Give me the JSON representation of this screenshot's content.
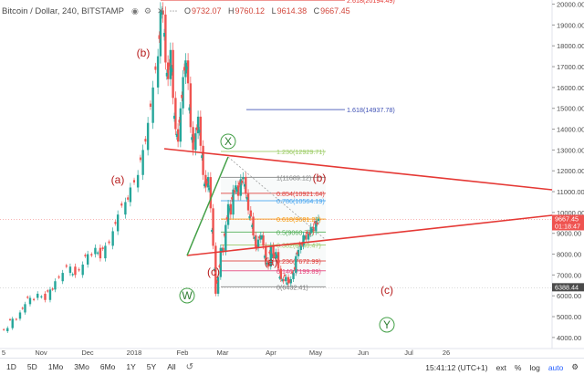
{
  "header": {
    "title": "Bitcoin / Dollar, 240, BITSTAMP",
    "ohlc": [
      {
        "k": "O",
        "v": "9732.07"
      },
      {
        "k": "H",
        "v": "9760.12"
      },
      {
        "k": "L",
        "v": "9614.38"
      },
      {
        "k": "C",
        "v": "9667.45"
      }
    ]
  },
  "chart_data": {
    "type": "line",
    "yaxis": {
      "ticks": [
        "20000.00",
        "19000.00",
        "18000.00",
        "17000.00",
        "16000.00",
        "15000.00",
        "14000.00",
        "13000.00",
        "12000.00",
        "11000.00",
        "10000.00",
        "9000.00",
        "8000.00",
        "7000.00",
        "6000.00",
        "5000.00",
        "4000.00"
      ],
      "ylim": [
        3600,
        20200
      ]
    },
    "xaxis": {
      "ticks": [
        "5",
        "Nov",
        "Dec",
        "2018",
        "Feb",
        "Mar",
        "Apr",
        "May",
        "Jun",
        "Jul",
        "26"
      ]
    },
    "price_labels": [
      {
        "value": 9667.45,
        "text": "9667.45",
        "subtext": "01:18:47",
        "color": "#ef5350"
      },
      {
        "value": 6388.44,
        "text": "6388.44",
        "subtext": "",
        "color": "#4a4a4a"
      }
    ],
    "series": [
      {
        "values": [
          [
            0,
            4300
          ],
          [
            3,
            4450
          ],
          [
            5,
            4900
          ],
          [
            8,
            5200
          ],
          [
            10,
            5600
          ],
          [
            12,
            5900
          ],
          [
            15,
            6100
          ],
          [
            18,
            5800
          ],
          [
            20,
            6300
          ],
          [
            22,
            6700
          ],
          [
            25,
            7100
          ],
          [
            28,
            7400
          ],
          [
            30,
            7000
          ],
          [
            33,
            7500
          ],
          [
            35,
            8000
          ],
          [
            38,
            8300
          ],
          [
            40,
            7800
          ],
          [
            42,
            8400
          ],
          [
            45,
            9100
          ],
          [
            47,
            9900
          ],
          [
            50,
            10500
          ],
          [
            52,
            11200
          ],
          [
            55,
            11800
          ],
          [
            57,
            13000
          ],
          [
            59,
            14300
          ],
          [
            61,
            16000
          ],
          [
            63,
            17500
          ],
          [
            64,
            19700
          ],
          [
            65,
            19500
          ],
          [
            66,
            17200
          ],
          [
            67,
            16400
          ],
          [
            68,
            17800
          ],
          [
            69,
            15500
          ],
          [
            70,
            14000
          ],
          [
            71,
            13400
          ],
          [
            72,
            15000
          ],
          [
            73,
            16500
          ],
          [
            74,
            17300
          ],
          [
            75,
            16200
          ],
          [
            76,
            14100
          ],
          [
            77,
            13000
          ],
          [
            78,
            13800
          ],
          [
            79,
            14600
          ],
          [
            80,
            13200
          ],
          [
            81,
            11800
          ],
          [
            82,
            11200
          ],
          [
            83,
            11700
          ],
          [
            84,
            10200
          ],
          [
            85,
            8400
          ],
          [
            86,
            6100
          ],
          [
            87,
            6900
          ],
          [
            88,
            8300
          ],
          [
            89,
            8100
          ],
          [
            90,
            9400
          ],
          [
            91,
            10400
          ],
          [
            92,
            9900
          ],
          [
            93,
            11100
          ],
          [
            94,
            11300
          ],
          [
            95,
            10800
          ],
          [
            96,
            11600
          ],
          [
            97,
            11700
          ],
          [
            98,
            10900
          ],
          [
            99,
            10100
          ],
          [
            100,
            9800
          ],
          [
            101,
            8900
          ],
          [
            102,
            8300
          ],
          [
            103,
            8700
          ],
          [
            104,
            8900
          ],
          [
            105,
            8400
          ],
          [
            106,
            7700
          ],
          [
            107,
            7400
          ],
          [
            108,
            8400
          ],
          [
            109,
            7800
          ],
          [
            110,
            8100
          ],
          [
            111,
            7300
          ],
          [
            112,
            6800
          ],
          [
            113,
            6700
          ],
          [
            114,
            6900
          ],
          [
            115,
            6600
          ],
          [
            116,
            6800
          ],
          [
            117,
            7100
          ],
          [
            118,
            7900
          ],
          [
            119,
            8200
          ],
          [
            120,
            8400
          ],
          [
            121,
            8900
          ],
          [
            122,
            8700
          ],
          [
            123,
            9000
          ],
          [
            124,
            9300
          ],
          [
            125,
            9100
          ],
          [
            126,
            9600
          ],
          [
            127,
            9700
          ]
        ]
      }
    ],
    "fib_levels": [
      {
        "ratio": "2.618",
        "value": 20194.49,
        "label": "2.618(20194.49)",
        "color": "#e53935"
      },
      {
        "ratio": "1.618",
        "value": 14937.78,
        "label": "1.618(14937.78)",
        "color": "#3f51b5"
      },
      {
        "ratio": "1.236",
        "value": 12929.71,
        "label": "1.236(12929.71)",
        "color": "#9ccc65"
      },
      {
        "ratio": "1",
        "value": 11689.12,
        "label": "1(11689.12)",
        "color": "#808080"
      },
      {
        "ratio": "0.854",
        "value": 10921.64,
        "label": "0.854(10921.64)",
        "color": "#e53935"
      },
      {
        "ratio": "0.786",
        "value": 10564.19,
        "label": "0.786(10564.19)",
        "color": "#42a5f5"
      },
      {
        "ratio": "0.618",
        "value": 9681.27,
        "label": "0.618(9681.27)",
        "color": "#ff9800"
      },
      {
        "ratio": "0.5",
        "value": 9060.77,
        "label": "0.5(9060.77)",
        "color": "#4caf50"
      },
      {
        "ratio": "0.382",
        "value": 8440.47,
        "label": "0.382(8440.47)",
        "color": "#9ccc65"
      },
      {
        "ratio": "0.236",
        "value": 7672.99,
        "label": "0.236(7672.99)",
        "color": "#e53935"
      },
      {
        "ratio": "0.146",
        "value": 7199.89,
        "label": "0.146(7199.89)",
        "color": "#ec407a"
      },
      {
        "ratio": "0",
        "value": 6432.41,
        "label": "0(6432.41)",
        "color": "#808080"
      }
    ],
    "wave_labels": [
      {
        "text": "(b)",
        "color": "#b71c1c"
      },
      {
        "text": "(a)",
        "color": "#b71c1c"
      },
      {
        "text": "(c)",
        "color": "#b71c1c"
      },
      {
        "text": "X",
        "color": "#2e7d32",
        "circled": true
      },
      {
        "text": "(b)",
        "color": "#b71c1c"
      },
      {
        "text": "(a)",
        "color": "#b71c1c"
      },
      {
        "text": "W",
        "color": "#2e7d32",
        "circled": true
      },
      {
        "text": "(c)",
        "color": "#b71c1c"
      },
      {
        "text": "Y",
        "color": "#2e7d32",
        "circled": true
      }
    ]
  },
  "bottom_bar": {
    "timeframes": [
      "1D",
      "5D",
      "1Mo",
      "3Mo",
      "6Mo",
      "1Y",
      "5Y",
      "All"
    ],
    "time": "15:41:12 (UTC+1)",
    "options": [
      "ext",
      "%",
      "log",
      "auto"
    ]
  },
  "colors": {
    "up": "#26a69a",
    "down": "#ef5350",
    "trendline": "#e53935",
    "wave_green": "#2e7d32",
    "wave_red": "#b71c1c"
  }
}
